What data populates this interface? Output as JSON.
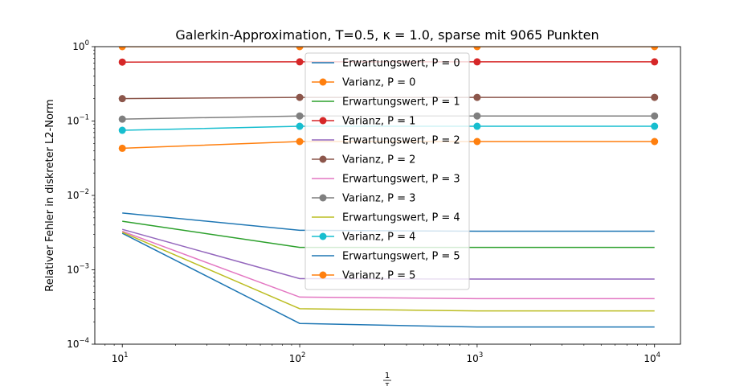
{
  "chart_data": {
    "type": "line",
    "title": "Galerkin-Approximation, T=0.5, κ = 1.0, sparse mit 9065 Punkten",
    "xlabel_num": "1",
    "xlabel_den": "τ",
    "ylabel": "Relativer Fehler in diskreter L2-Norm",
    "x_scale": "log",
    "y_scale": "log",
    "xlim": [
      7,
      14000
    ],
    "ylim": [
      0.0001,
      1
    ],
    "x_ticks": [
      {
        "value": 10,
        "base": "10",
        "exp": "1"
      },
      {
        "value": 100,
        "base": "10",
        "exp": "2"
      },
      {
        "value": 1000,
        "base": "10",
        "exp": "3"
      },
      {
        "value": 10000,
        "base": "10",
        "exp": "4"
      }
    ],
    "y_ticks": [
      {
        "value": 0.0001,
        "base": "10",
        "exp": "−4"
      },
      {
        "value": 0.001,
        "base": "10",
        "exp": "−3"
      },
      {
        "value": 0.01,
        "base": "10",
        "exp": "−2"
      },
      {
        "value": 0.1,
        "base": "10",
        "exp": "−1"
      },
      {
        "value": 1,
        "base": "10",
        "exp": "0"
      }
    ],
    "grid": false,
    "legend_position": "top-center",
    "x": [
      10,
      100,
      1000,
      10000
    ],
    "series": [
      {
        "name": "Erwartungswert, P = 0",
        "color": "#1f77b4",
        "marker": false,
        "values": [
          0.0031,
          0.00019,
          0.00017,
          0.00017
        ]
      },
      {
        "name": "Varianz, P = 0",
        "color": "#ff7f0e",
        "marker": true,
        "values": [
          1.0,
          1.0,
          1.0,
          1.0
        ]
      },
      {
        "name": "Erwartungswert, P = 1",
        "color": "#2ca02c",
        "marker": false,
        "values": [
          0.0045,
          0.002,
          0.002,
          0.002
        ]
      },
      {
        "name": "Varianz, P = 1",
        "color": "#d62728",
        "marker": true,
        "values": [
          0.62,
          0.625,
          0.625,
          0.625
        ]
      },
      {
        "name": "Erwartungswert, P = 2",
        "color": "#9467bd",
        "marker": false,
        "values": [
          0.0035,
          0.00076,
          0.00075,
          0.00075
        ]
      },
      {
        "name": "Varianz, P = 2",
        "color": "#8c564b",
        "marker": true,
        "values": [
          0.2,
          0.208,
          0.208,
          0.208
        ]
      },
      {
        "name": "Erwartungswert, P = 3",
        "color": "#e377c2",
        "marker": false,
        "values": [
          0.0033,
          0.00043,
          0.00041,
          0.00041
        ]
      },
      {
        "name": "Varianz, P = 3",
        "color": "#7f7f7f",
        "marker": true,
        "values": [
          0.106,
          0.117,
          0.117,
          0.117
        ]
      },
      {
        "name": "Erwartungswert, P = 4",
        "color": "#bcbd22",
        "marker": false,
        "values": [
          0.0032,
          0.0003,
          0.00028,
          0.00028
        ]
      },
      {
        "name": "Varianz, P = 4",
        "color": "#17becf",
        "marker": true,
        "values": [
          0.075,
          0.085,
          0.085,
          0.085
        ]
      },
      {
        "name": "Erwartungswert, P = 5",
        "color": "#1f77b4",
        "marker": false,
        "values": [
          0.0058,
          0.0034,
          0.0033,
          0.0033
        ]
      },
      {
        "name": "Varianz, P = 5",
        "color": "#ff7f0e",
        "marker": true,
        "values": [
          0.043,
          0.053,
          0.053,
          0.053
        ]
      }
    ]
  }
}
